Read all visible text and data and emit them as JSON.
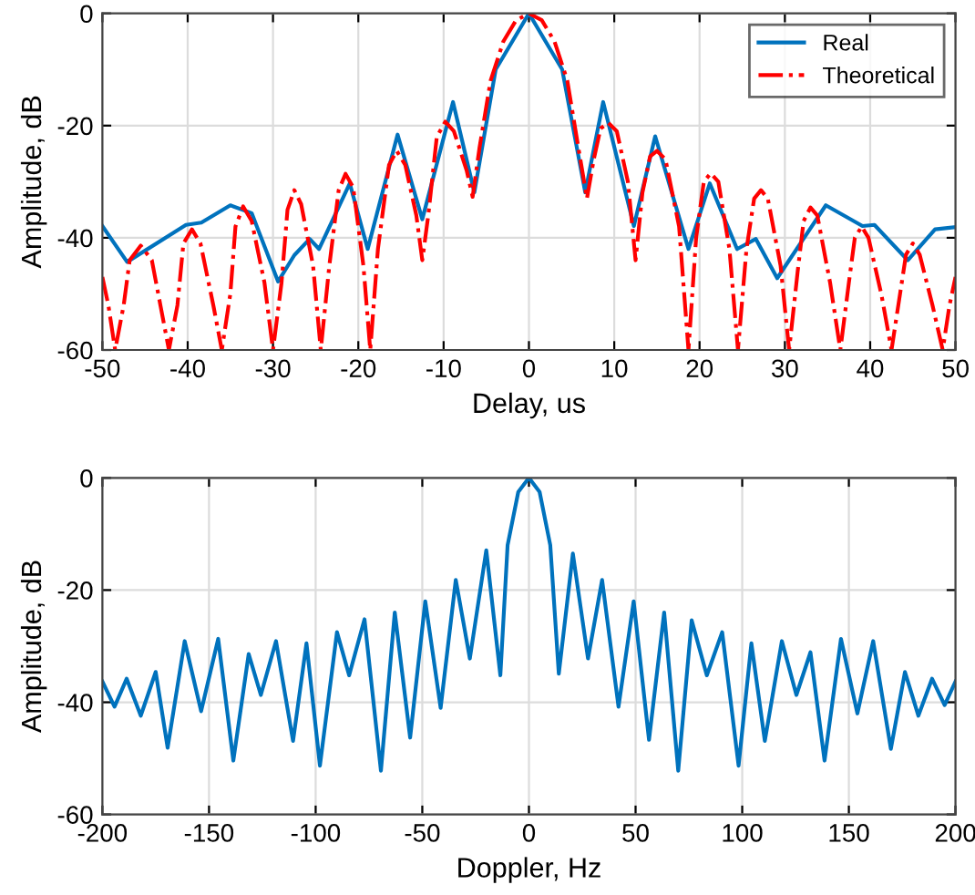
{
  "chart_data": [
    {
      "type": "line",
      "xlabel": "Delay, us",
      "ylabel": "Amplitude, dB",
      "xlim": [
        -50,
        50
      ],
      "ylim": [
        -60,
        0
      ],
      "xticks": [
        -50,
        -40,
        -30,
        -20,
        -10,
        0,
        10,
        20,
        30,
        40,
        50
      ],
      "yticks": [
        -60,
        -40,
        -20,
        0
      ],
      "grid": true,
      "legend": "top right",
      "series": [
        {
          "name": "Real",
          "color": "#0072bd",
          "line_style": "solid",
          "x": [
            -50,
            -47.1,
            -40.2,
            -38.4,
            -35,
            -32.5,
            -29.4,
            -27.5,
            -25.7,
            -24.6,
            -21,
            -18.9,
            -15.4,
            -12.5,
            -8.9,
            -6.4,
            -3.9,
            0,
            3.9,
            6.6,
            8.7,
            12.3,
            14.8,
            18.7,
            21.2,
            24.4,
            26.6,
            29.1,
            34.8,
            39.1,
            40.5,
            44.4,
            47.6,
            50
          ],
          "values": [
            -37.9,
            -44.3,
            -37.7,
            -37.3,
            -34.2,
            -35.6,
            -47.8,
            -43.1,
            -40.2,
            -42,
            -30.3,
            -42,
            -21.6,
            -36.7,
            -15.8,
            -31.9,
            -10,
            0,
            -10,
            -31.9,
            -15.8,
            -37.9,
            -21.9,
            -42,
            -30.3,
            -42,
            -40.2,
            -47.2,
            -34.2,
            -37.9,
            -37.7,
            -44,
            -38.5,
            -38.1
          ]
        },
        {
          "name": "Theoretical",
          "color": "#ff0000",
          "line_style": "dashdot",
          "x": [
            -50,
            -49.3,
            -48.5,
            -47.5,
            -46.8,
            -45.5,
            -44.2,
            -43.2,
            -42.2,
            -41.2,
            -40.5,
            -39.5,
            -38.5,
            -37,
            -36,
            -35,
            -34.4,
            -33.5,
            -32.5,
            -31,
            -30,
            -29,
            -28.3,
            -27.5,
            -26.7,
            -25.3,
            -24.4,
            -23.4,
            -22.3,
            -21.5,
            -20.6,
            -19.4,
            -18.6,
            -17.7,
            -16.4,
            -15.5,
            -14.5,
            -13.2,
            -12.5,
            -11.8,
            -10.8,
            -9.8,
            -8.8,
            -7.3,
            -6.6,
            -5.8,
            -4.5,
            -3,
            -1.5,
            0,
            1.5,
            3,
            4.5,
            5.8,
            6.8,
            7.6,
            8.4,
            9.3,
            10.3,
            11.6,
            12.5,
            13.3,
            14.2,
            15,
            16,
            17.6,
            18.7,
            19.6,
            20.5,
            21.3,
            22.2,
            23.5,
            24.5,
            25.5,
            26.4,
            27.2,
            28,
            29.5,
            30.5,
            31.5,
            32.2,
            33,
            33.8,
            35.3,
            36.5,
            37.5,
            38.2,
            39,
            39.8,
            41.3,
            42.5,
            43.5,
            44.2,
            45,
            45.8,
            47.3,
            48.5,
            49.3,
            50
          ],
          "values": [
            -47,
            -52,
            -60,
            -52,
            -44,
            -41.4,
            -44,
            -52,
            -60,
            -52,
            -41,
            -38.5,
            -41,
            -52,
            -60,
            -50,
            -38,
            -34.4,
            -37,
            -48,
            -60,
            -48,
            -35,
            -31.5,
            -34,
            -45,
            -60,
            -45,
            -31.5,
            -28.6,
            -31,
            -45,
            -60,
            -42,
            -27,
            -24.5,
            -27,
            -36,
            -44,
            -36,
            -22,
            -19.3,
            -21,
            -28,
            -32.7,
            -24,
            -12,
            -5,
            -1.2,
            0,
            -1.2,
            -5,
            -12,
            -24,
            -33,
            -26,
            -20.5,
            -19.5,
            -21,
            -30,
            -44,
            -32,
            -25.5,
            -24.5,
            -26,
            -38,
            -60,
            -40,
            -30,
            -28.5,
            -30,
            -42,
            -60,
            -42,
            -33,
            -31.5,
            -33,
            -45,
            -60,
            -46,
            -37,
            -34.6,
            -36,
            -48,
            -60,
            -48,
            -40,
            -38,
            -40,
            -50,
            -60,
            -50,
            -43,
            -41,
            -43,
            -52,
            -60,
            -52,
            -47
          ]
        }
      ]
    },
    {
      "type": "line",
      "xlabel": "Doppler, Hz",
      "ylabel": "Amplitude, dB",
      "xlim": [
        -200,
        200
      ],
      "ylim": [
        -60,
        0
      ],
      "xticks": [
        -200,
        -150,
        -100,
        -50,
        0,
        50,
        100,
        150,
        200
      ],
      "yticks": [
        -60,
        -40,
        -20,
        0
      ],
      "grid": true,
      "series": [
        {
          "color": "#0072bd",
          "line_style": "solid",
          "x": [
            -200,
            -194.3,
            -188.6,
            -182,
            -175,
            -169.4,
            -161.4,
            -153.7,
            -145.7,
            -138.6,
            -131.4,
            -125.7,
            -118.6,
            -110.6,
            -104.3,
            -98,
            -90,
            -84.3,
            -77.1,
            -69.4,
            -62.9,
            -55.7,
            -48.6,
            -41.4,
            -34.3,
            -27.7,
            -20,
            -13.4,
            -10,
            -5,
            0,
            5,
            10,
            14,
            20.6,
            27.7,
            34.3,
            42,
            49.1,
            56.3,
            63.4,
            70,
            76.3,
            83.4,
            90.6,
            98.3,
            104.3,
            110.6,
            118.6,
            125.4,
            132,
            138.6,
            146.3,
            154,
            161.4,
            169.7,
            176.3,
            182.6,
            189,
            194.9,
            200
          ],
          "values": [
            -36.3,
            -40.8,
            -35.8,
            -42.4,
            -34.6,
            -48.1,
            -29.1,
            -41.6,
            -28.7,
            -50.4,
            -31.4,
            -38.7,
            -29.1,
            -46.9,
            -29.5,
            -51.3,
            -27.5,
            -35.2,
            -25.2,
            -52.2,
            -24,
            -46.3,
            -22,
            -41,
            -18.2,
            -32.2,
            -12.9,
            -35.2,
            -12,
            -2.5,
            0,
            -2.5,
            -12,
            -34.9,
            -13.5,
            -32.2,
            -18.2,
            -40.8,
            -22,
            -46.7,
            -24,
            -52.2,
            -25.4,
            -35.2,
            -27.5,
            -51.3,
            -29.5,
            -46.9,
            -29.1,
            -38.7,
            -31.1,
            -50.4,
            -28.7,
            -42,
            -29.1,
            -48.3,
            -34.6,
            -42.4,
            -35.8,
            -40.5,
            -36.3
          ]
        }
      ]
    }
  ]
}
